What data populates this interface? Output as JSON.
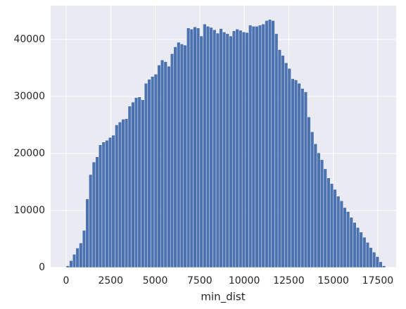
{
  "chart_data": {
    "type": "histogram",
    "xlabel": "min_dist",
    "color": "#4c72b0",
    "grid": true,
    "bins": [
      0,
      183,
      366,
      549,
      732,
      915,
      1098,
      1281,
      1464,
      1647,
      1830,
      2013,
      2196,
      2379,
      2562,
      2745,
      2928,
      3111,
      3294,
      3477,
      3660,
      3843,
      4026,
      4209,
      4392,
      4575,
      4758,
      4941,
      5124,
      5307,
      5490,
      5673,
      5856,
      6039,
      6222,
      6405,
      6588,
      6771,
      6954,
      7137,
      7320,
      7503,
      7686,
      7869,
      8052,
      8235,
      8418,
      8601,
      8784,
      8967,
      9150,
      9333,
      9516,
      9699,
      9882,
      10065,
      10248,
      10431,
      10614,
      10797,
      10980,
      11163,
      11346,
      11529,
      11712,
      11895,
      12078,
      12261,
      12444,
      12627,
      12810,
      12993,
      13176,
      13359,
      13542,
      13725,
      13908,
      14091,
      14274,
      14457,
      14640,
      14823,
      15006,
      15189,
      15372,
      15555,
      15738,
      15921,
      16104,
      16287,
      16470,
      16653,
      16836,
      17019,
      17202,
      17385,
      17568,
      17751,
      17934
    ],
    "values": [
      300,
      1200,
      2300,
      3400,
      4300,
      6500,
      12000,
      16300,
      18500,
      19400,
      21500,
      22000,
      22300,
      22800,
      23200,
      25000,
      25500,
      26000,
      26100,
      28300,
      29000,
      29800,
      29900,
      29400,
      32300,
      33000,
      33500,
      33900,
      35500,
      36400,
      36100,
      35300,
      37500,
      38700,
      39500,
      39200,
      39000,
      42000,
      41800,
      42200,
      42000,
      40600,
      42700,
      42300,
      42100,
      41700,
      41100,
      41900,
      41300,
      41000,
      40600,
      41500,
      41800,
      41600,
      41300,
      41200,
      42500,
      42300,
      42300,
      42500,
      42700,
      43300,
      43500,
      43300,
      41000,
      38200,
      37200,
      35900,
      34900,
      33100,
      32900,
      32300,
      31400,
      30800,
      26400,
      23800,
      21700,
      20100,
      18900,
      17300,
      15700,
      14700,
      13700,
      12500,
      11700,
      10500,
      9800,
      8800,
      7900,
      7000,
      6200,
      5300,
      4400,
      3500,
      2700,
      1900,
      1000,
      300
    ],
    "xlim": [
      -869,
      18530
    ],
    "ylim": [
      0,
      45926
    ],
    "xticks": [
      0,
      2500,
      5000,
      7500,
      10000,
      12500,
      15000,
      17500
    ],
    "yticks": [
      0,
      10000,
      20000,
      30000,
      40000
    ]
  }
}
